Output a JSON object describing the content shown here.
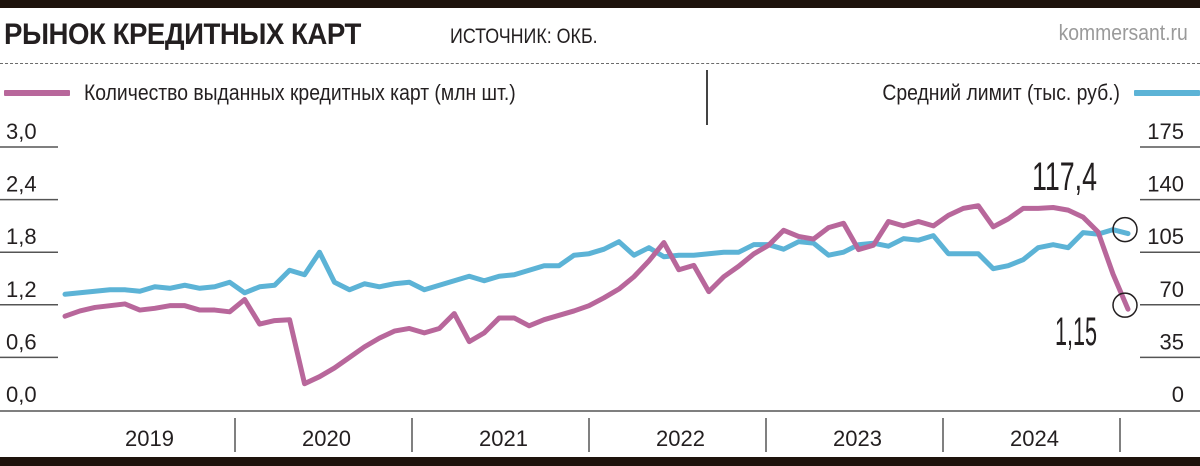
{
  "header": {
    "title": "РЫНОК КРЕДИТНЫХ КАРТ",
    "source": "ИСТОЧНИК: ОКБ.",
    "site": "kommersant.ru"
  },
  "legend": {
    "left": {
      "label": "Количество выданных кредитных карт (млн шт.)",
      "color": "#b8679b"
    },
    "right": {
      "label": "Средний лимит (тыс. руб.)",
      "color": "#5cb3d6"
    }
  },
  "annotations": {
    "limit_last": "117,4",
    "cards_last": "1,15"
  },
  "chart_data": {
    "type": "line",
    "title": "РЫНОК КРЕДИТНЫХ КАРТ",
    "source": "ИСТОЧНИК: ОКБ.",
    "xlabel": "",
    "x_categories": [
      "2019",
      "2020",
      "2021",
      "2022",
      "2023",
      "2024"
    ],
    "x_note": "monthly points, Jan 2019 – Dec 2024",
    "grid": "horizontal tick lines at axis labels",
    "legend_position": "top",
    "y_left": {
      "label": "Количество выданных кредитных карт (млн шт.)",
      "ticks": [
        "0,0",
        "0,6",
        "1,2",
        "1,8",
        "2,4",
        "3,0"
      ],
      "range": [
        0,
        3.0
      ]
    },
    "y_right": {
      "label": "Средний лимит (тыс. руб.)",
      "ticks": [
        "0",
        "35",
        "70",
        "105",
        "140",
        "175"
      ],
      "range": [
        0,
        175
      ]
    },
    "series": [
      {
        "name": "Количество выданных кредитных карт (млн шт.)",
        "axis": "left",
        "color": "#b8679b",
        "values": [
          1.07,
          1.13,
          1.17,
          1.19,
          1.21,
          1.14,
          1.16,
          1.19,
          1.19,
          1.14,
          1.14,
          1.12,
          1.26,
          0.98,
          1.02,
          1.03,
          0.3,
          0.38,
          0.48,
          0.6,
          0.72,
          0.82,
          0.9,
          0.93,
          0.88,
          0.93,
          1.1,
          0.78,
          0.88,
          1.05,
          1.05,
          0.96,
          1.03,
          1.08,
          1.13,
          1.19,
          1.28,
          1.38,
          1.52,
          1.7,
          1.91,
          1.6,
          1.65,
          1.35,
          1.52,
          1.64,
          1.78,
          1.88,
          2.05,
          1.98,
          1.95,
          2.08,
          2.13,
          1.83,
          1.88,
          2.15,
          2.1,
          2.15,
          2.1,
          2.22,
          2.3,
          2.33,
          2.09,
          2.18,
          2.3,
          2.3,
          2.31,
          2.28,
          2.2,
          2.03,
          1.55,
          1.15
        ],
        "last_label": "1,15"
      },
      {
        "name": "Средний лимит (тыс. руб.)",
        "axis": "right",
        "color": "#5cb3d6",
        "values": [
          77,
          78,
          79,
          80,
          80,
          79,
          82,
          81,
          83,
          81,
          82,
          85,
          78,
          82,
          83,
          93,
          90,
          105,
          85,
          80,
          84,
          82,
          84,
          85,
          80,
          83,
          86,
          89,
          86,
          89,
          90,
          93,
          96,
          96,
          103,
          104,
          107,
          112,
          103,
          108,
          102,
          103,
          103,
          104,
          105,
          105,
          110,
          110,
          107,
          112,
          111,
          103,
          105,
          110,
          111,
          109,
          114,
          113,
          116,
          104,
          104,
          104,
          94,
          96,
          100,
          108,
          110,
          108,
          118,
          117,
          120,
          117.4
        ],
        "last_label": "117,4"
      }
    ]
  }
}
